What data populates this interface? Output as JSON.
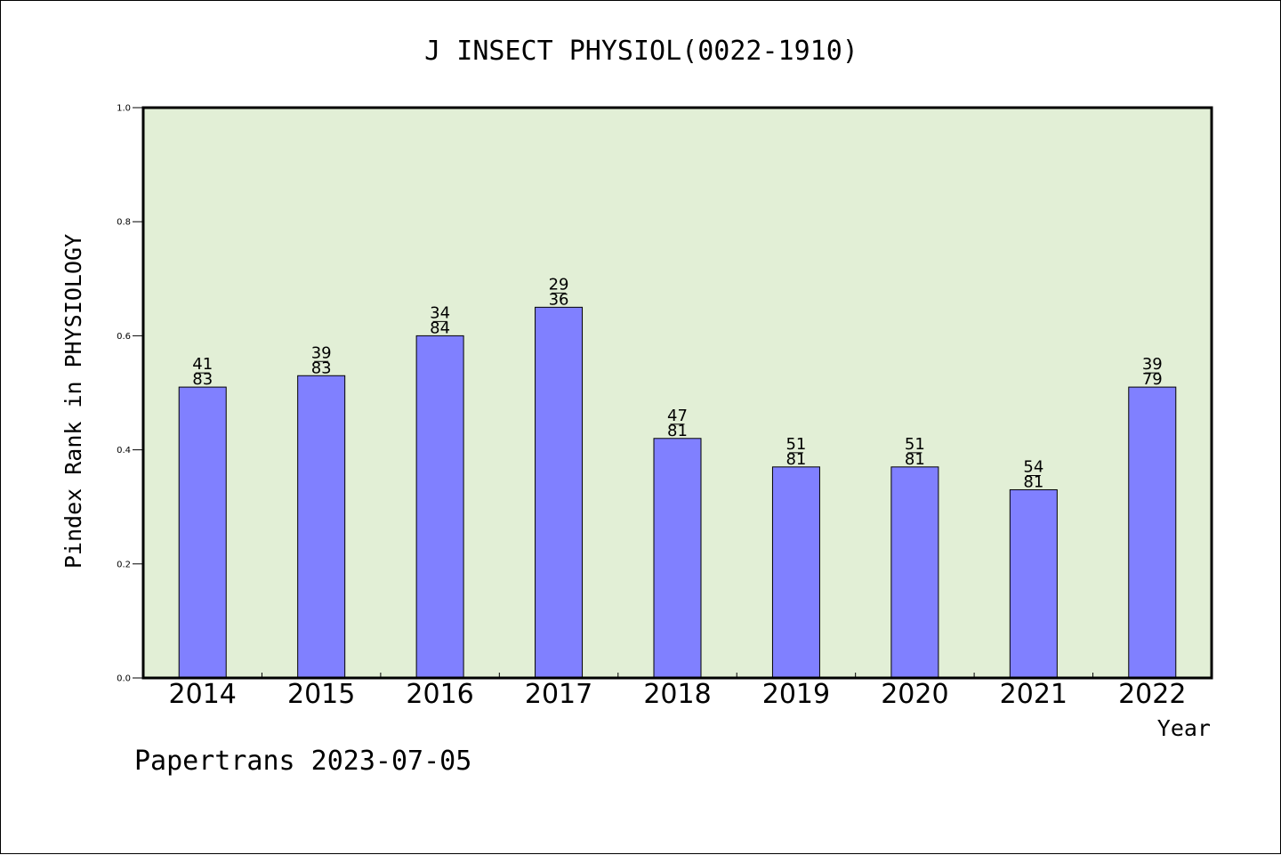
{
  "chart_data": {
    "type": "bar",
    "title": "J INSECT PHYSIOL(0022-1910)",
    "xlabel": "Year",
    "ylabel": "Pindex Rank in PHYSIOLOGY",
    "ylim": [
      0,
      1.0
    ],
    "yticks": [
      "0.0",
      "0.2",
      "0.4",
      "0.6",
      "0.8",
      "1.0"
    ],
    "ytick_values": [
      0.0,
      0.2,
      0.4,
      0.6,
      0.8,
      1.0
    ],
    "categories": [
      "2014",
      "2015",
      "2016",
      "2017",
      "2018",
      "2019",
      "2020",
      "2021",
      "2022"
    ],
    "values": [
      0.51,
      0.53,
      0.6,
      0.65,
      0.42,
      0.37,
      0.37,
      0.33,
      0.51
    ],
    "label_top": [
      "41",
      "39",
      "34",
      "29",
      "47",
      "51",
      "51",
      "54",
      "39"
    ],
    "label_bottom": [
      "83",
      "83",
      "84",
      "36",
      "81",
      "81",
      "81",
      "81",
      "79"
    ],
    "grid": false,
    "colors": {
      "bar": "#8080ff",
      "plot_bg": "#e2efd6",
      "axis": "#000000"
    }
  },
  "footer": "Papertrans 2023-07-05"
}
